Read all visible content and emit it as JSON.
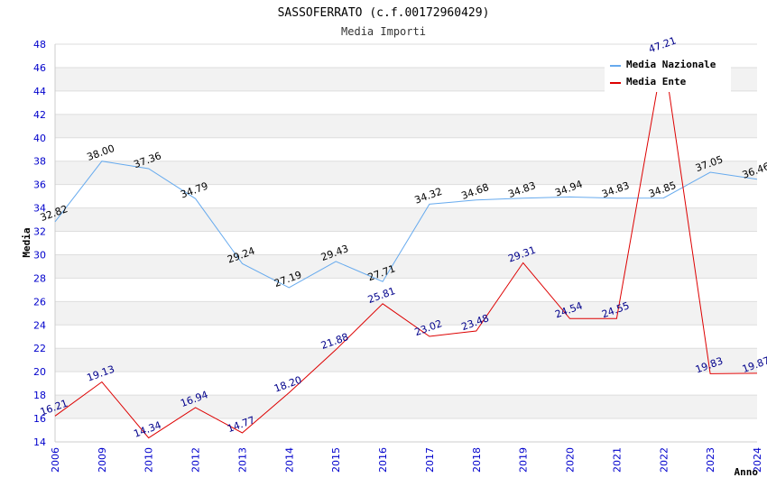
{
  "chart_data": {
    "type": "line",
    "title": "SASSOFERRATO (c.f.00172960429)",
    "subtitle": "Media Importi",
    "xlabel": "Anno",
    "ylabel": "Media",
    "categories": [
      "2006",
      "2009",
      "2010",
      "2012",
      "2013",
      "2014",
      "2015",
      "2016",
      "2017",
      "2018",
      "2019",
      "2020",
      "2021",
      "2022",
      "2023",
      "2024"
    ],
    "ylim": [
      14,
      48
    ],
    "yticks": [
      14,
      16,
      18,
      20,
      22,
      24,
      26,
      28,
      30,
      32,
      34,
      36,
      38,
      40,
      42,
      44,
      46,
      48
    ],
    "grid": "horizontal bands",
    "legend_position": "top-right",
    "series": [
      {
        "name": "Media Nazionale",
        "color": "#66aaee",
        "values": [
          32.82,
          38.0,
          37.36,
          34.79,
          29.24,
          27.19,
          29.43,
          27.71,
          34.32,
          34.68,
          34.83,
          34.94,
          34.83,
          34.85,
          37.05,
          36.46
        ],
        "labels": [
          "32.82",
          "38.00",
          "37.36",
          "34.79",
          "29.24",
          "27.19",
          "29.43",
          "27.71",
          "34.32",
          "34.68",
          "34.83",
          "34.94",
          "34.83",
          "34.85",
          "37.05",
          "36.46"
        ]
      },
      {
        "name": "Media Ente",
        "color": "#dd0000",
        "values": [
          16.21,
          19.13,
          14.34,
          16.94,
          14.77,
          18.2,
          21.88,
          25.81,
          23.02,
          23.48,
          29.31,
          24.54,
          24.55,
          47.21,
          19.83,
          19.87
        ],
        "labels": [
          "16.21",
          "19.13",
          "14.34",
          "16.94",
          "14.77",
          "18.20",
          "21.88",
          "25.81",
          "23.02",
          "23.48",
          "29.31",
          "24.54",
          "24.55",
          "47.21",
          "19.83",
          "19.87"
        ]
      }
    ]
  }
}
